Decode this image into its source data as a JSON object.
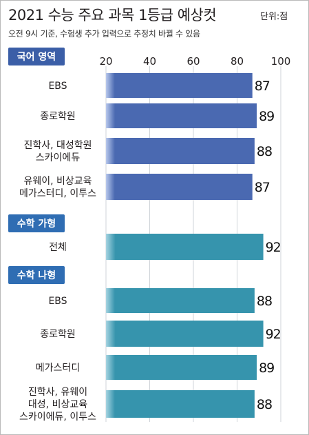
{
  "header": {
    "title": "2021 수능 주요 과목 1등급 예상컷",
    "unit": "단위:점",
    "note": "오전 9시 기준, 수험생 추가 입력으로 추정치 바뀔 수 있음"
  },
  "colors": {
    "korean_bar": "#4a69b1",
    "korean_bar_light": "#b8c8ec",
    "math_bar": "#3694ad",
    "math_bar_light": "#a6d4e1",
    "korean_section_bg": "#3b5ea7",
    "math_section_bg": "#2f6db3",
    "grid": "#cfd3d8",
    "frame": "#b9b9b9"
  },
  "chart_data": {
    "type": "bar",
    "orientation": "horizontal",
    "xlim": [
      20,
      100
    ],
    "xticks": [
      "20",
      "40",
      "60",
      "80",
      "100"
    ],
    "sections": [
      {
        "label": "국어 영역",
        "rows": [
          {
            "lines": [
              "EBS"
            ],
            "value": 87
          },
          {
            "lines": [
              "종로학원"
            ],
            "value": 89
          },
          {
            "lines": [
              "진학사, 대성학원",
              "스카이에듀"
            ],
            "value": 88
          },
          {
            "lines": [
              "유웨이, 비상교육",
              "메가스터디, 이투스"
            ],
            "value": 87
          }
        ]
      },
      {
        "label": "수학 가형",
        "rows": [
          {
            "lines": [
              "전체"
            ],
            "value": 92
          }
        ]
      },
      {
        "label": "수학 나형",
        "rows": [
          {
            "lines": [
              "EBS"
            ],
            "value": 88
          },
          {
            "lines": [
              "종로학원"
            ],
            "value": 92
          },
          {
            "lines": [
              "메가스터디"
            ],
            "value": 89
          },
          {
            "lines": [
              "진학사, 유웨이",
              "대성, 비상교육",
              "스카이에듀, 이투스"
            ],
            "value": 88
          }
        ]
      }
    ]
  }
}
